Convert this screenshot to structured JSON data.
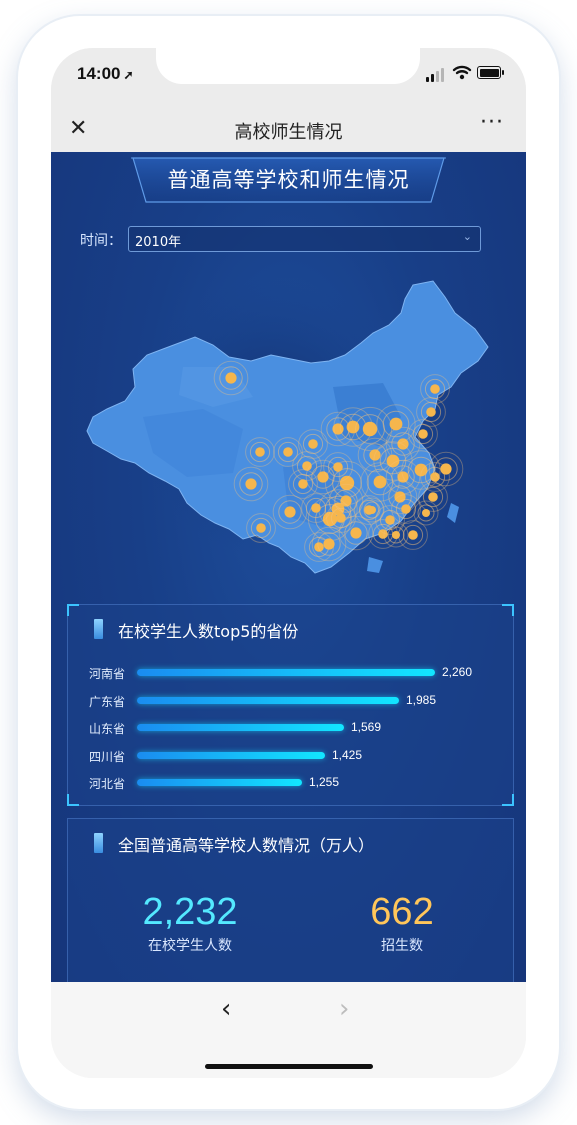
{
  "status_bar": {
    "time": "14:00"
  },
  "nav": {
    "title": "高校师生情况"
  },
  "banner": {
    "title": "普通高等学校和师生情况"
  },
  "filter": {
    "label": "时间：",
    "value": "2010年"
  },
  "top5": {
    "title": "在校学生人数top5的省份",
    "max": 2260,
    "items": [
      {
        "name": "河南省",
        "value": 2260,
        "label": "2,260"
      },
      {
        "name": "广东省",
        "value": 1985,
        "label": "1,985"
      },
      {
        "name": "山东省",
        "value": 1569,
        "label": "1,569"
      },
      {
        "name": "四川省",
        "value": 1425,
        "label": "1,425"
      },
      {
        "name": "河北省",
        "value": 1255,
        "label": "1,255"
      }
    ],
    "bar_color_start": "#1a8cf0",
    "bar_color_end": "#12e6ff"
  },
  "summary": {
    "title": "全国普通高等学校人数情况（万人）",
    "students": {
      "value": "2,232",
      "label": "在校学生人数",
      "color": "#54e9ff"
    },
    "enroll": {
      "value": "662",
      "label": "招生数",
      "color": "#ffc65a"
    }
  },
  "colors": {
    "background": "#183f88",
    "map_fill": "#4a8fe0",
    "point": "#f5b64d"
  }
}
